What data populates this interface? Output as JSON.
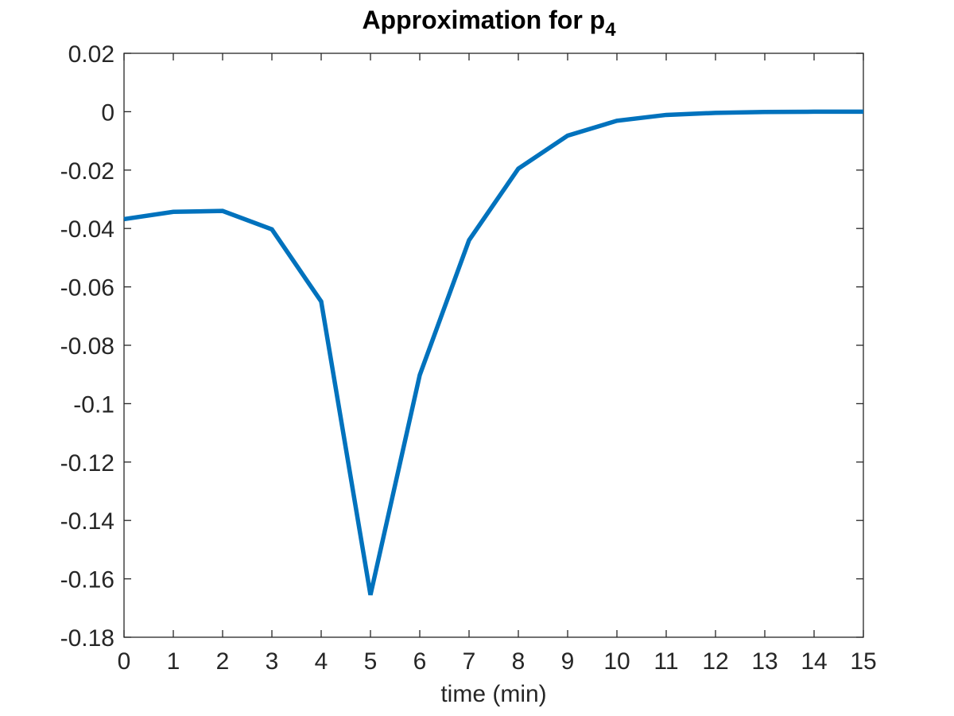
{
  "chart_data": {
    "type": "line",
    "title": "Approximation for p",
    "title_subscript": "4",
    "xlabel": "time (min)",
    "ylabel": "",
    "xlim": [
      0,
      15
    ],
    "ylim": [
      -0.18,
      0.02
    ],
    "xticks": [
      0,
      1,
      2,
      3,
      4,
      5,
      6,
      7,
      8,
      9,
      10,
      11,
      12,
      13,
      14,
      15
    ],
    "xtick_labels": [
      "0",
      "1",
      "2",
      "3",
      "4",
      "5",
      "6",
      "7",
      "8",
      "9",
      "10",
      "11",
      "12",
      "13",
      "14",
      "15"
    ],
    "yticks": [
      0.02,
      0,
      -0.02,
      -0.04,
      -0.06,
      -0.08,
      -0.1,
      -0.12,
      -0.14,
      -0.16,
      -0.18
    ],
    "ytick_labels": [
      "0.02",
      "0",
      "-0.02",
      "-0.04",
      "-0.06",
      "-0.08",
      "-0.1",
      "-0.12",
      "-0.14",
      "-0.16",
      "-0.18"
    ],
    "grid": false,
    "legend": "none",
    "series": [
      {
        "color": "#0072BD",
        "x": [
          0,
          1,
          2,
          3,
          4,
          5,
          6,
          7,
          8,
          9,
          10,
          11,
          12,
          13,
          14,
          15
        ],
        "values": [
          -0.0368,
          -0.0343,
          -0.034,
          -0.0403,
          -0.065,
          -0.1655,
          -0.0902,
          -0.044,
          -0.0195,
          -0.0082,
          -0.0031,
          -0.0011,
          -0.0004,
          -0.0001,
          0.0,
          0.0
        ]
      }
    ]
  }
}
